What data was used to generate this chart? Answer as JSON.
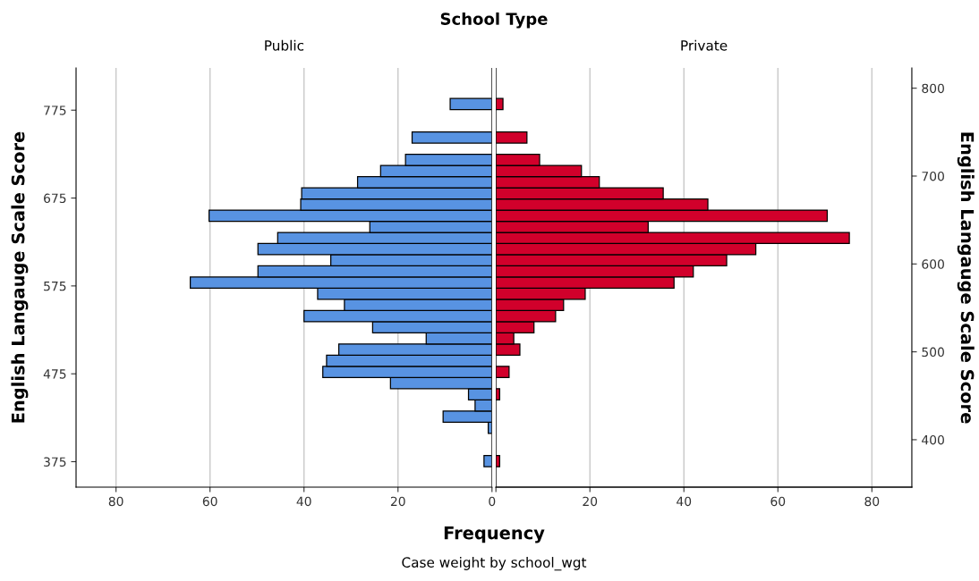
{
  "chart_data": [
    {
      "type": "histogram",
      "orientation": "horizontal",
      "title": "School Type",
      "subtitle": "Public",
      "xlabel": "Frequency",
      "ylabel": "English Langauge Scale Score",
      "annotations": [
        "Case weight by school_wgt"
      ],
      "bins": [
        369.2,
        381.9,
        394.6,
        407.3,
        420.0,
        432.7,
        445.4,
        458.1,
        470.8,
        483.5,
        496.2,
        508.9,
        521.6,
        534.3,
        547.0,
        559.7,
        572.4,
        585.1,
        597.8,
        610.5,
        623.2,
        635.9,
        648.6,
        661.3,
        674.0,
        686.7,
        699.4,
        712.1,
        724.8,
        737.5,
        750.2,
        762.9,
        775.6,
        788.3
      ],
      "series": [
        {
          "color": "#5893e2",
          "values": [
            1.7,
            0,
            0,
            0.8,
            10.4,
            3.6,
            5.0,
            21.6,
            36.0,
            35.2,
            32.6,
            14.0,
            25.4,
            40.0,
            31.4,
            37.1,
            64.2,
            49.8,
            34.3,
            49.8,
            45.6,
            26.0,
            60.2,
            40.7,
            40.5,
            28.6,
            23.7,
            18.4,
            0,
            17.0,
            0,
            0,
            8.9
          ]
        }
      ],
      "xlim": [
        88.5,
        0
      ],
      "xticks": [
        80,
        60,
        40,
        20,
        0
      ],
      "ylim": [
        346,
        823
      ],
      "yticks": [
        375,
        475,
        575,
        675,
        775
      ],
      "grid": "x"
    },
    {
      "type": "histogram",
      "orientation": "horizontal",
      "subtitle": "Private",
      "y2label": "English Langauge Scale Score",
      "bins": [
        369.2,
        381.9,
        394.6,
        407.3,
        420.0,
        432.7,
        445.4,
        458.1,
        470.8,
        483.5,
        496.2,
        508.9,
        521.6,
        534.3,
        547.0,
        559.7,
        572.4,
        585.1,
        597.8,
        610.5,
        623.2,
        635.9,
        648.6,
        661.3,
        674.0,
        686.7,
        699.4,
        712.1,
        724.8,
        737.5,
        750.2,
        762.9,
        775.6,
        788.3
      ],
      "series": [
        {
          "axis": "y2",
          "color": "#d1002b",
          "values": [
            0.8,
            0,
            0,
            0,
            0,
            0,
            0.8,
            0,
            2.8,
            0,
            5.1,
            3.8,
            8.1,
            12.7,
            14.4,
            19.0,
            37.9,
            42.0,
            49.1,
            55.3,
            75.2,
            32.4,
            70.5,
            45.1,
            35.6,
            22.0,
            18.2,
            9.3,
            0,
            6.6,
            0,
            0,
            1.5
          ]
        }
      ],
      "xlim": [
        0,
        88.5
      ],
      "xticks": [
        {
          "value": 0,
          "label": null
        },
        20,
        40,
        60,
        80
      ],
      "ylim": [
        346,
        823
      ],
      "y2lim": [
        346,
        823
      ],
      "y2ticks": [
        400,
        500,
        600,
        700,
        800
      ],
      "grid": "x"
    }
  ]
}
